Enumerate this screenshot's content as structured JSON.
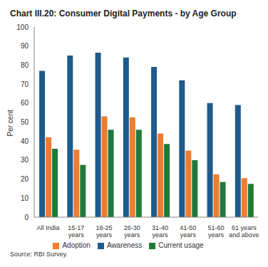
{
  "chart_data": {
    "type": "bar",
    "title": "Chart III.20: Consumer Digital Payments - by Age Group",
    "subtitle": "Source: RBI Survey.",
    "y_label": "Per cent",
    "categories": [
      "All India",
      "15-17 years",
      "18-25 years",
      "26-30 years",
      "31-40 years",
      "41-50 years",
      "51-60 years",
      "61 years and above"
    ],
    "series": [
      {
        "name": "Awareness",
        "color": "#1f5a8c",
        "values": [
          77,
          85,
          86.5,
          84,
          79,
          72,
          60,
          59
        ]
      },
      {
        "name": "Adoption",
        "color": "#ee7d31",
        "values": [
          42,
          35.5,
          53,
          52.5,
          44,
          35,
          22.5,
          20.5
        ]
      },
      {
        "name": "Current usage",
        "color": "#1f7a3a",
        "values": [
          36,
          27.5,
          46,
          46,
          38.5,
          30,
          18.5,
          17.5
        ]
      }
    ],
    "ylim": [
      0,
      100
    ],
    "yticks": [
      0,
      10,
      20,
      30,
      40,
      50,
      60,
      70,
      80,
      90,
      100
    ],
    "grid": false,
    "legend": "bottom"
  }
}
